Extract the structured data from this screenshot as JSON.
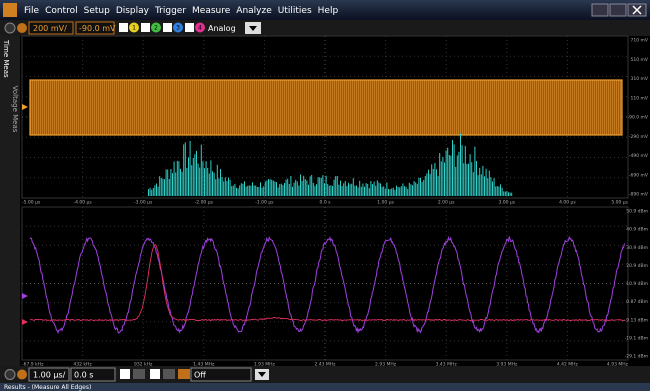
{
  "menu": [
    "File",
    "Control",
    "Setup",
    "Display",
    "Trigger",
    "Measure",
    "Analyze",
    "Utilities",
    "Help"
  ],
  "toolbar": {
    "scale": "200 mV/",
    "offset": "-90.0 mV",
    "channels": [
      "1",
      "2",
      "3",
      "4"
    ],
    "mode": "Analog"
  },
  "side_tabs": [
    "Time Meas",
    "Voltage Meas"
  ],
  "upper_plot": {
    "y_labels": [
      "710 mV",
      "510 mV",
      "310 mV",
      "110 mV",
      "-90.0 mV",
      "-290 mV",
      "-490 mV",
      "-690 mV",
      "-890 mV"
    ],
    "x_labels": [
      "-5.00 µs",
      "-4.00 µs",
      "-3.00 µs",
      "-2.00 µs",
      "-1.00 µs",
      "0.0 s",
      "1.00 µs",
      "2.00 µs",
      "3.00 µs",
      "4.00 µs",
      "5.00 µs"
    ]
  },
  "lower_plot": {
    "y_labels": [
      "50.9 dBm",
      "40.9 dBm",
      "30.9 dBm",
      "20.9 dBm",
      "10.9 dBm",
      "0.87 dBm",
      "-9.13 dBm",
      "-19.1 dBm",
      "-29.1 dBm"
    ],
    "x_labels": [
      "-67.9 kHz",
      "432 kHz",
      "932 kHz",
      "1.43 MHz",
      "1.93 MHz",
      "2.43 MHz",
      "2.93 MHz",
      "3.43 MHz",
      "3.93 MHz",
      "4.42 MHz",
      "4.93 MHz"
    ]
  },
  "timebase": {
    "scale": "1.00 µs/",
    "position": "0.0 s",
    "trigger": "Off"
  },
  "status": "Results - (Measure All Edges)"
}
